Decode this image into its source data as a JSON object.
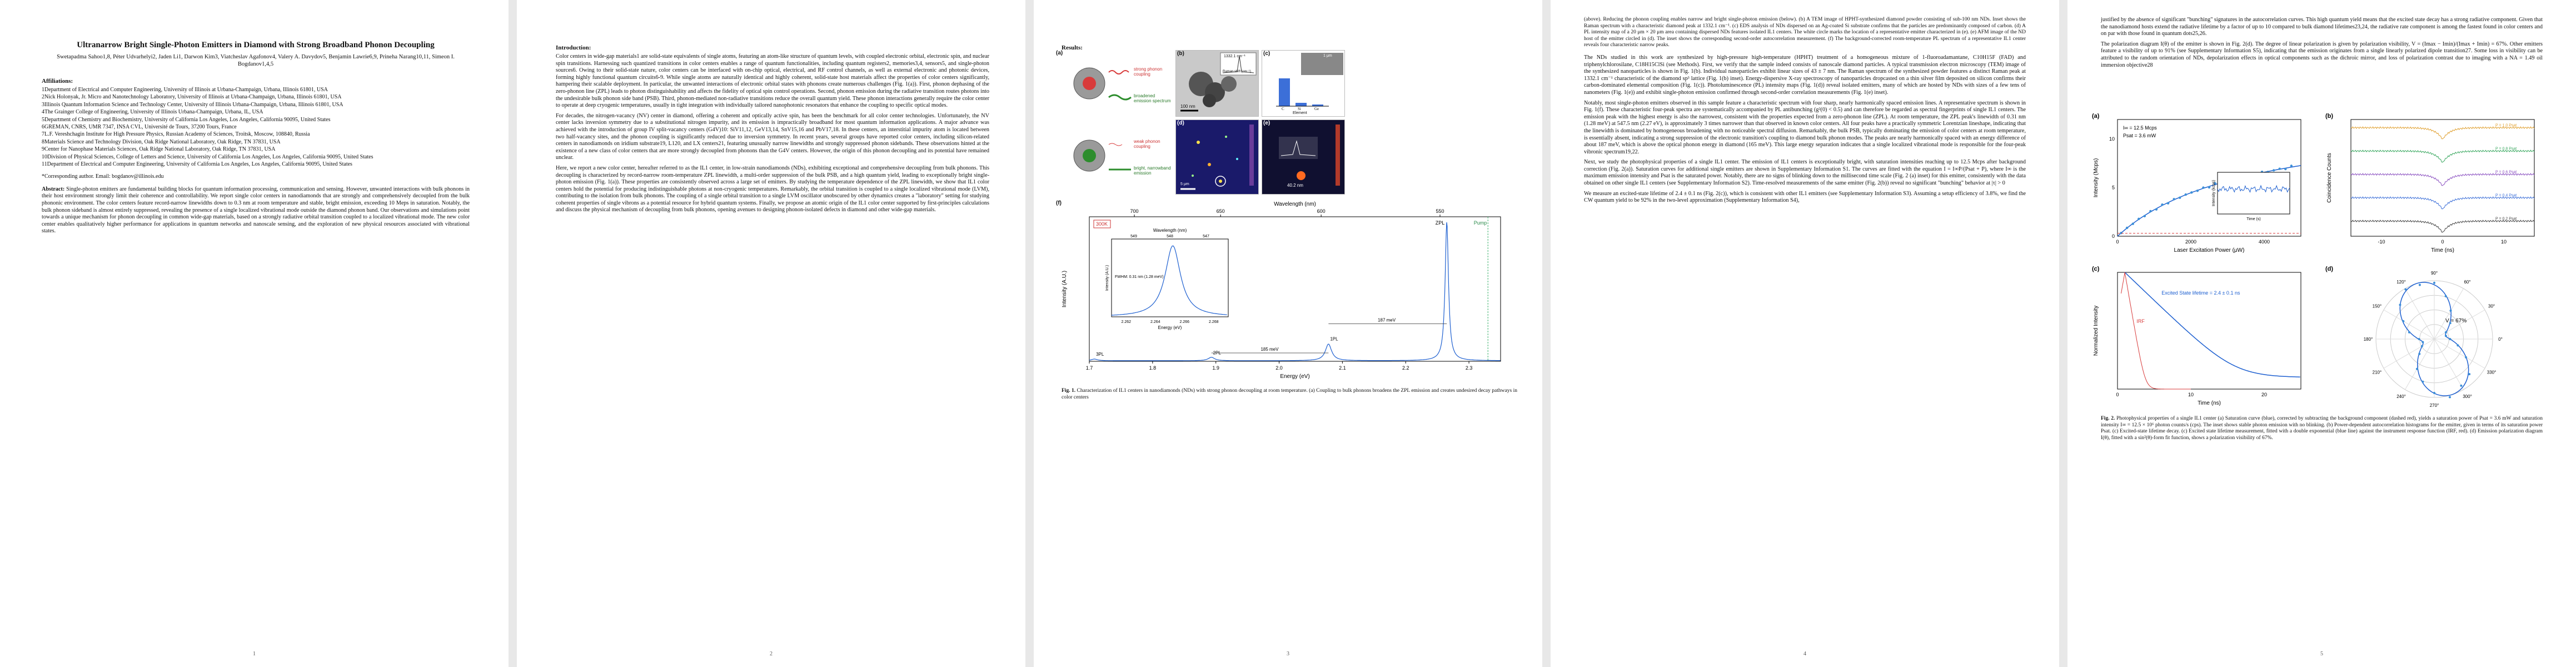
{
  "page1": {
    "title": "Ultranarrow Bright Single-Photon Emitters in Diamond with Strong Broadband Phonon Decoupling",
    "authors": "Swetapadma Sahoo1,8, Péter Udvarhelyi2, Jaden Li1, Darwon Kim3, Viatcheslav Agafonov4, Valery A. Davydov5, Benjamin Lawrie6,9, Prineha Narang10,11, Simeon I. Bogdanov1,4,5",
    "affiliations_heading": "Affiliations:",
    "affiliations": [
      "1Department of Electrical and Computer Engineering, University of Illinois at Urbana-Champaign, Urbana, Illinois 61801, USA",
      "2Nick Holonyak, Jr. Micro and Nanotechnology Laboratory, University of Illinois at Urbana-Champaign, Urbana, Illinois 61801, USA",
      "3Illinois Quantum Information Science and Technology Center, University of Illinois Urbana-Champaign, Urbana, Illinois 61801, USA",
      "4The Grainger College of Engineering, University of Illinois Urbana-Champaign, Urbana, IL, USA",
      "5Department of Chemistry and Biochemistry, University of California Los Angeles, Los Angeles, California 90095, United States",
      "6GREMAN, CNRS, UMR 7347, INSA CVL, Université de Tours, 37200 Tours, France",
      "7L.F. Vereshchagin Institute for High Pressure Physics, Russian Academy of Sciences, Troitsk, Moscow, 108840, Russia",
      "8Materials Science and Technology Division, Oak Ridge National Laboratory, Oak Ridge, TN 37831, USA",
      "9Center for Nanophase Materials Sciences, Oak Ridge National Laboratory, Oak Ridge, TN 37831, USA",
      "10Division of Physical Sciences, College of Letters and Science, University of California Los Angeles, Los Angeles, California 90095, United States",
      "11Department of Electrical and Computer Engineering, University of California Los Angeles, Los Angeles, California 90095, United States"
    ],
    "corresponding": "*Corresponding author. Email: bogdanov@illinois.edu",
    "abstract_label": "Abstract:",
    "abstract": "Single-photon emitters are fundamental building blocks for quantum information processing, communication and sensing. However, unwanted interactions with bulk phonons in their host environment strongly limit their coherence and controllability. We report single color centers in nanodiamonds that are strongly and comprehensively decoupled from the bulk phononic environment. The color centers feature record-narrow linewidths down to 0.3 nm at room temperature and stable, bright emission, exceeding 10 Meps in saturation. Notably, the bulk phonon sideband is almost entirely suppressed, revealing the presence of a single localized vibrational mode outside the diamond phonon band. Our observations and simulations point towards a unique mechanism for phonon decoupling in common wide-gap materials, based on a strongly radiative orbital transition coupled to a localized vibrational mode. The new color center enables qualitatively higher performance for applications in quantum networks and nanoscale sensing, and the exploration of new physical resources associated with vibrational states.",
    "page_number": "1"
  },
  "page2": {
    "heading": "Introduction:",
    "paragraphs": [
      "Color centers in wide-gap materials1 are solid-state equivalents of single atoms, featuring an atom-like structure of quantum levels, with coupled electronic orbital, electronic spin, and nuclear spin transitions. Harnessing such quantized transitions in color centers enables a range of quantum functionalities, including quantum registers2, memories3,4, sensors5, and single-photon sources6. Owing to their solid-state nature, color centers can be interfaced with on-chip optical, electrical, and RF control channels, as well as external electronic and photonic devices, forming highly functional quantum circuits6-9. While single atoms are naturally identical and highly coherent, solid-state host materials affect the properties of color centers significantly, hampering their scalable deployment. In particular, the unwanted interactions of electronic orbital states with phonons create numerous challenges (Fig. 1(a)). First, phonon dephasing of the zero-phonon line (ZPL) leads to photon distinguishability and affects the fidelity of optical spin control operations. Second, phonon emission during the radiative transition routes photons into the undesirable bulk phonon side band (PSB). Third, phonon-mediated non-radiative transitions reduce the overall quantum yield. These phonon interactions generally require the color center to operate at deep cryogenic temperatures, usually in tight integration with individually tailored nanophotonic resonators that enhance the coupling to specific optical modes.",
      "For decades, the nitrogen-vacancy (NV) center in diamond, offering a coherent and optically active spin, has been the benchmark for all color center technologies. Unfortunately, the NV center lacks inversion symmetry due to a substitutional nitrogen impurity, and its emission is impractically broadband for most quantum information applications. A major advance was achieved with the introduction of group IV split-vacancy centers (G4V)10: SiV11,12, GeV13,14, SnV15,16 and PbV17,18. In these centers, an interstitial impurity atom is located between two half-vacancy sites, and the phonon coupling is significantly reduced due to inversion symmetry. In recent years, several groups have reported color centers, including silicon-related centers in nanodiamonds on iridium substrate19, L120, and LX centers21, featuring unusually narrow linewidths and strongly suppressed phonon sidebands. These observations hinted at the existence of a new class of color centers that are more strongly decoupled from phonons than the G4V centers. However, the origin of this phonon decoupling and its potential have remained unclear.",
      "Here, we report a new color center, hereafter referred to as the IL1 center, in low-strain nanodiamonds (NDs), exhibiting exceptional and comprehensive decoupling from bulk phonons. This decoupling is characterized by record-narrow room-temperature ZPL linewidth, a multi-order suppression of the bulk PSB, and a high quantum yield, leading to exceptionally bright single-photon emission (Fig. 1(a)). These properties are consistently observed across a large set of emitters. By studying the temperature dependence of the ZPL linewidth, we show that IL1 color centers hold the potential for producing indistinguishable photons at non-cryogenic temperatures. Remarkably, the orbital transition is coupled to a single localized vibrational mode (LVM), contributing to the isolation from bulk phonons. The coupling of a single orbital transition to a single LVM oscillator unobscured by other dynamics creates a \"laboratory\" setting for studying coherent properties of single vibrons as a potential resource for hybrid quantum systems. Finally, we propose an atomic origin of the IL1 color center supported by first-principles calculations and discuss the physical mechanism of decoupling from bulk phonons, opening avenues to designing phonon-isolated defects in diamond and other wide-gap materials."
    ],
    "page_number": "2"
  },
  "page3": {
    "heading": "Results:",
    "fig1a_labels": {
      "strong": "strong phonon coupling",
      "broadened": "broadened emission spectrum",
      "weak": "weak phonon coupling",
      "narrow": "bright, narrowband emission"
    },
    "fig1_panel_labels": [
      "(a)",
      "(b)",
      "(c)",
      "(d)",
      "(e)",
      "(f)"
    ],
    "fig1b": {
      "scale": "100 nm",
      "inset_peak": "1332.1 cm⁻¹",
      "inset_xlabel": "Raman shift (cm⁻¹)"
    },
    "fig1c": {
      "scale": "1 μm",
      "elements": [
        "C",
        "Si",
        "Ge"
      ],
      "xlabel": "Element"
    },
    "fig1d": {
      "scale": "5 μm",
      "cbar_label": "Intensity (kcps)"
    },
    "fig1e": {
      "fwhm": "40.2 nm",
      "cbar_label": "nm"
    },
    "fig1f": {
      "top_axis_label": "Wavelength (nm)",
      "top_ticks": [
        "750",
        "700",
        "650",
        "600",
        "550"
      ],
      "x_label": "Energy (eV)",
      "y_label": "Intensity (A.U.)",
      "x_ticks": [
        "1.7",
        "1.8",
        "1.9",
        "2.0",
        "2.1",
        "2.2",
        "2.3"
      ],
      "tag": "300K",
      "zpl": "ZPL",
      "pump": "Pump",
      "annot_187": "187 meV",
      "annot_185": "185 meV",
      "annot_1pl": "1PL",
      "annot_2pl": "2PL",
      "annot_3pl": "3PL",
      "inset_top_label": "Wavelength (nm)",
      "inset_top_ticks": [
        "549",
        "548",
        "547"
      ],
      "inset_xlabel": "Energy (eV)",
      "inset_ylabel": "Intensity (A.U.)",
      "inset_xticks": [
        "2.262",
        "2.264",
        "2.266",
        "2.268"
      ],
      "inset_fwhm": "FWHM: 0.31 nm (1.28 meV)"
    },
    "caption_label": "Fig. 1.",
    "caption": "Characterization of IL1 centers in nanodiamonds (NDs) with strong phonon decoupling at room temperature. (a) Coupling to bulk phonons broadens the ZPL emission and creates undesired decay pathways in color centers",
    "page_number": "3"
  },
  "page4": {
    "caption_cont": "(above). Reducing the phonon coupling enables narrow and bright single-photon emission (below). (b) A TEM image of HPHT-synthesized diamond powder consisting of sub-100 nm NDs. Inset shows the Raman spectrum with a characteristic diamond peak at 1332.1 cm⁻¹. (c) EDS analysis of NDs dispersed on an Ag-coated Si substrate confirms that the particles are predominantly composed of carbon. (d) A PL intensity map of a 20 μm × 20 μm area containing dispersed NDs features isolated IL1 centers. The white circle marks the location of a representative emitter characterized in (e). (e) AFM image of the ND host of the emitter circled in (d). The inset shows the corresponding second-order autocorrelation measurement. (f) The background-corrected room-temperature PL spectrum of a representative IL1 center reveals four characteristic narrow peaks.",
    "paragraphs": [
      "The NDs studied in this work are synthesized by high-pressure high-temperature (HPHT) treatment of a homogeneous mixture of 1-fluoroadamantane, C10H15F (FAD) and triphenylchlorosilane, C18H15ClSi (see Methods). First, we verify that the sample indeed consists of nanoscale diamond particles. A typical transmission electron microscopy (TEM) image of the synthesized nanoparticles is shown in Fig. 1(b). Individual nanoparticles exhibit linear sizes of 43 ± 7 nm. The Raman spectrum of the synthesized powder features a distinct Raman peak at 1332.1 cm⁻¹ characteristic of the diamond sp³ lattice (Fig. 1(b) inset). Energy-dispersive X-ray spectroscopy of nanoparticles dropcasted on a thin silver film deposited on silicon confirms their carbon-dominated elemental composition (Fig. 1(c)). Photoluminescence (PL) intensity maps (Fig. 1(d)) reveal isolated emitters, many of which are hosted by NDs with sizes of a few tens of nanometers (Fig. 1(e)) and exhibit single-photon emission confirmed through second-order correlation measurements (Fig. 1(e) inset).",
      "Notably, most single-photon emitters observed in this sample feature a characteristic spectrum with four sharp, nearly harmonically spaced emission lines. A representative spectrum is shown in Fig. 1(f). These characteristic four-peak spectra are systematically accompanied by PL antibunching (g²(0) < 0.5) and can therefore be regarded as spectral fingerprints of single IL1 centers. The emission peak with the highest energy is also the narrowest, consistent with the properties expected from a zero-phonon line (ZPL). At room temperature, the ZPL peak's linewidth of 0.31 nm (1.28 meV) at 547.5 nm (2.27 eV), is approximately 3 times narrower than that observed in known color centers. All four peaks have a practically symmetric Lorentzian lineshape, indicating that the linewidth is dominated by homogeneous broadening with no noticeable spectral diffusion. Remarkably, the bulk PSB, typically dominating the emission of color centers at room temperature, is essentially absent, indicating a strong suppression of the electronic transition's coupling to diamond bulk phonon modes. The peaks are nearly harmonically spaced with an energy difference of about 187 meV, which is above the optical phonon energy in diamond (165 meV). This large energy separation indicates that a single localized vibrational mode is responsible for the four-peak vibronic spectrum19,22.",
      "Next, we study the photophysical properties of a single IL1 center. The emission of IL1 centers is exceptionally bright, with saturation intensities reaching up to 12.5 Mcps after background correction (Fig. 2(a)). Saturation curves for additional single emitters are shown in Supplementary Information S1. The curves are fitted with the equation I = I∞P/(Psat + P), where I∞ is the maximum emission intensity and Psat is the saturated power. Notably, there are no signs of blinking down to the millisecond time scale (Fig. 2 (a) inset) for this emitter, consistently with the data obtained on other single IL1 centers (see Supplementary Information S2). Time-resolved measurements of the same emitter (Fig. 2(b)) reveal no significant \"bunching\" behavior at |τ| > 0",
      "We measure an excited-state lifetime of 2.4 ± 0.1 ns (Fig. 2(c)), which is consistent with other IL1 emitters (see Supplementary Information S3). Assuming a setup efficiency of 3.8%, we find the CW quantum yield to be 92% in the two-level approximation (Supplementary Information S4),"
    ],
    "page_number": "4"
  },
  "page5": {
    "paragraphs": [
      "justified by the absence of significant \"bunching\" signatures in the autocorrelation curves. This high quantum yield means that the excited state decay has a strong radiative component. Given that the nanodiamond hosts extend the radiative lifetime by a factor of up to 10 compared to bulk diamond lifetimes23,24, the radiative rate component is among the fastest found in color centers and on par with those found in quantum dots25,26.",
      "The polarization diagram I(θ) of the emitter is shown in Fig. 2(d). The degree of linear polarization is given by polarization visibility, V = (Imax − Imin)/(Imax + Imin) = 67%. Other emitters feature a visibility of up to 91% (see Supplementary Information S5), indicating that the emission originates from a single linearly polarized dipole transition27. Some loss in visibility can be attributed to the random orientation of NDs, depolarization effects in optical components such as the dichroic mirror, and loss of polarization contrast due to imaging with a NA = 1.49 oil immersion objective28"
    ],
    "fig2a": {
      "label": "(a)",
      "xlabel": "Laser Excitation Power (μW)",
      "ylabel": "Intensity (Mcps)",
      "ann1": "I∞ = 12.5 Mcps",
      "ann2": "Psat = 3.6 mW",
      "xticks": [
        "0",
        "2000",
        "4000"
      ],
      "yticks": [
        "0",
        "5",
        "10"
      ],
      "inset_xlabel": "Time (s)",
      "inset_ylabel": "Intensity (kcps)"
    },
    "fig2b": {
      "label": "(b)",
      "xlabel": "Time (ns)",
      "ylabel": "Coincidence Counts",
      "xticks": [
        "-10",
        "0",
        "10"
      ],
      "legend": [
        "P = 1.0 Psat",
        "P = 0.8 Psat",
        "P = 0.6 Psat",
        "P = 0.4 Psat",
        "P = 0.2 Psat"
      ],
      "colors": [
        "#e0a030",
        "#3aa860",
        "#8a4fc0",
        "#3c6fd8",
        "#444444"
      ]
    },
    "fig2c": {
      "label": "(c)",
      "xlabel": "Time (ns)",
      "ylabel": "Normalized Intensity",
      "text": "Excited State lifetime = 2.4 ± 0.1 ns",
      "irf": "IRF",
      "xticks": [
        "0",
        "10",
        "20"
      ]
    },
    "fig2d": {
      "label": "(d)",
      "visibility": "V = 67%",
      "angles": [
        "0°",
        "30°",
        "60°",
        "90°",
        "120°",
        "150°",
        "180°",
        "210°",
        "240°",
        "270°",
        "300°",
        "330°"
      ]
    },
    "caption_label": "Fig. 2.",
    "caption": "Photophysical properties of a single IL1 center (a) Saturation curve (blue), corrected by subtracting the background component (dashed red), yields a saturation power of Psat = 3.6 mW and saturation intensity I∞ = 12.5 × 10⁶ photon counts/s (cps). The inset shows stable photon emission with no blinking. (b) Power-dependent autocorrelation histograms for the emitter, given in terms of its saturation power Psat. (c) Excited-state lifetime decay. (c) Excited state lifetime measurement, fitted with a double exponential (blue line) against the instrument response function (IRF, red). (d) Emission polarization diagram I(θ), fitted with a sin²(θ)-form fit function, shows a polarization visibility of 67%.",
    "page_number": "5"
  },
  "chart_data": [
    {
      "type": "line",
      "title": "",
      "xlabel": "Energy (eV)",
      "ylabel": "Intensity (A.U.)",
      "xlim": [
        1.7,
        2.35
      ],
      "peaks": [
        {
          "label": "ZPL",
          "x": 2.265,
          "height": 1.0
        },
        {
          "label": "1PL",
          "x": 2.078,
          "height": 0.12
        },
        {
          "label": "2PL",
          "x": 1.893,
          "height": 0.025
        },
        {
          "label": "3PL",
          "x": 1.708,
          "height": 0.012
        }
      ]
    },
    {
      "type": "scatter",
      "xlabel": "Laser Excitation Power (μW)",
      "ylabel": "Intensity (Mcps)",
      "xlim": [
        0,
        5000
      ],
      "ylim": [
        0,
        12
      ],
      "fit": {
        "I_inf": 12.5,
        "P_sat": 3600
      }
    },
    {
      "type": "line",
      "xlabel": "Time (ns)",
      "ylabel": "Normalized Intensity",
      "lifetime_ns": 2.4,
      "xlim": [
        0,
        25
      ]
    }
  ]
}
